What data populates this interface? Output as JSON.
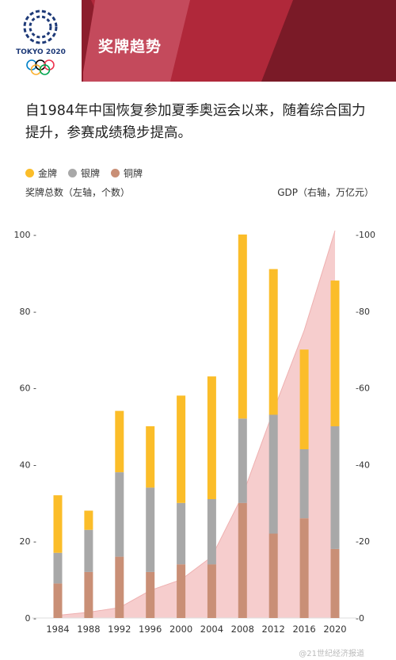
{
  "header": {
    "title": "奖牌趋势",
    "logo_text": "TOKYO 2020"
  },
  "intro": "自1984年中国恢复参加夏季奥运会以来，随着综合国力提升，参赛成绩稳步提高。",
  "legend": {
    "gold": "金牌",
    "silver": "银牌",
    "bronze": "铜牌"
  },
  "axis_titles": {
    "left": "奖牌总数（左轴，个数）",
    "right": "GDP（右轴，万亿元）"
  },
  "watermark": "@21世纪经济报道",
  "colors": {
    "banner": "#8c1d2c",
    "gold": "#fbbd29",
    "silver": "#a8a8a8",
    "bronze": "#c98f76",
    "gdp_area": "#f5c4c4"
  },
  "chart_data": {
    "type": "bar",
    "stacked": true,
    "categories": [
      "1984",
      "1988",
      "1992",
      "1996",
      "2000",
      "2004",
      "2008",
      "2012",
      "2016",
      "2020"
    ],
    "series": [
      {
        "name": "铜牌",
        "values": [
          9,
          12,
          16,
          12,
          14,
          14,
          30,
          22,
          26,
          18
        ]
      },
      {
        "name": "银牌",
        "values": [
          8,
          11,
          22,
          22,
          16,
          17,
          22,
          31,
          18,
          32
        ]
      },
      {
        "name": "金牌",
        "values": [
          15,
          5,
          16,
          16,
          28,
          32,
          48,
          38,
          26,
          38
        ]
      }
    ],
    "gdp": {
      "name": "GDP",
      "x": [
        "1984",
        "1988",
        "1992",
        "1996",
        "2000",
        "2004",
        "2008",
        "2012",
        "2016",
        "2020"
      ],
      "values": [
        0.7,
        1.5,
        2.7,
        7.2,
        10,
        16,
        32,
        54,
        75,
        101
      ]
    },
    "yticks_left": [
      "0",
      "20",
      "40",
      "60",
      "80",
      "100"
    ],
    "yticks_right": [
      "0",
      "20",
      "40",
      "60",
      "80",
      "100"
    ],
    "ylim_left": [
      0,
      100
    ],
    "ylim_right": [
      0,
      100
    ],
    "ylabel_left": "奖牌总数（左轴，个数）",
    "ylabel_right": "GDP（右轴，万亿元）",
    "legend": "top-left",
    "grid": false
  }
}
